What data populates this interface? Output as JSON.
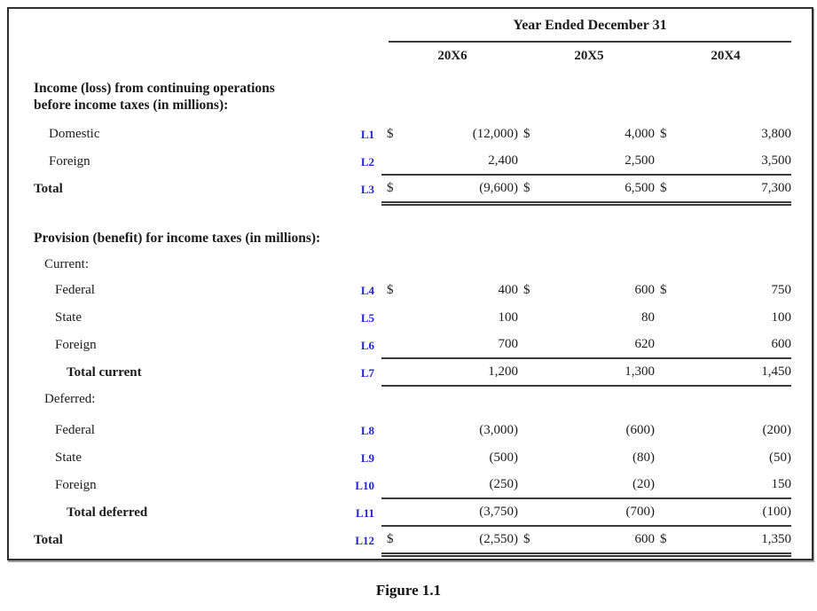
{
  "table": {
    "period_header": "Year Ended December 31",
    "columns": [
      "20X6",
      "20X5",
      "20X4"
    ],
    "section_pretax": {
      "heading_line1": "Income (loss) from continuing operations",
      "heading_line2": "before income taxes (in millions):",
      "rows": {
        "domestic": {
          "tag": "L1",
          "label": "Domestic",
          "dollar": "$",
          "v1": "(12,000)",
          "v2": "4,000",
          "v3": "3,800"
        },
        "foreign": {
          "tag": "L2",
          "label": "Foreign",
          "v1": "2,400",
          "v2": "2,500",
          "v3": "3,500"
        },
        "total": {
          "tag": "L3",
          "label": "Total",
          "dollar": "$",
          "v1": "(9,600)",
          "v2": "6,500",
          "v3": "7,300"
        }
      }
    },
    "section_provision": {
      "heading": "Provision (benefit) for income taxes (in millions):",
      "current_label": "Current:",
      "deferred_label": "Deferred:",
      "rows": {
        "cur_federal": {
          "tag": "L4",
          "label": "Federal",
          "dollar": "$",
          "v1": "400",
          "v2": "600",
          "v3": "750"
        },
        "cur_state": {
          "tag": "L5",
          "label": "State",
          "v1": "100",
          "v2": "80",
          "v3": "100"
        },
        "cur_foreign": {
          "tag": "L6",
          "label": "Foreign",
          "v1": "700",
          "v2": "620",
          "v3": "600"
        },
        "total_current": {
          "tag": "L7",
          "label": "Total current",
          "v1": "1,200",
          "v2": "1,300",
          "v3": "1,450"
        },
        "def_federal": {
          "tag": "L8",
          "label": "Federal",
          "v1": "(3,000)",
          "v2": "(600)",
          "v3": "(200)"
        },
        "def_state": {
          "tag": "L9",
          "label": "State",
          "v1": "(500)",
          "v2": "(80)",
          "v3": "(50)"
        },
        "def_foreign": {
          "tag": "L10",
          "label": "Foreign",
          "v1": "(250)",
          "v2": "(20)",
          "v3": "150"
        },
        "total_deferred": {
          "tag": "L11",
          "label": "Total deferred",
          "v1": "(3,750)",
          "v2": "(700)",
          "v3": "(100)"
        },
        "total": {
          "tag": "L12",
          "label": "Total",
          "dollar": "$",
          "v1": "(2,550)",
          "v2": "600",
          "v3": "1,350"
        }
      }
    }
  },
  "colors": {
    "tag_blue": "#2323cf",
    "rule": "#3a3a3a",
    "text": "#1b1b1b"
  },
  "caption": "Figure 1.1"
}
